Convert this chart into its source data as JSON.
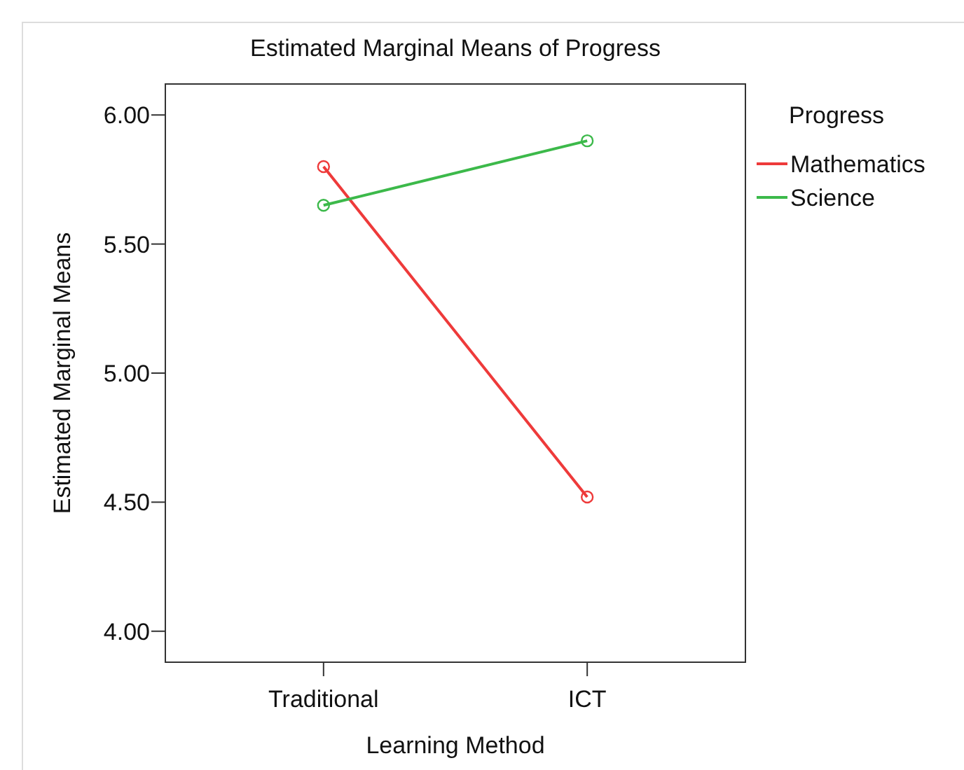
{
  "chart_data": {
    "type": "line",
    "title": "Estimated Marginal Means of Progress",
    "xlabel": "Learning Method",
    "ylabel": "Estimated Marginal Means",
    "legend_title": "Progress",
    "categories": [
      "Traditional",
      "ICT"
    ],
    "series": [
      {
        "name": "Mathematics",
        "color": "#ee3a3a",
        "values": [
          5.8,
          4.52
        ]
      },
      {
        "name": "Science",
        "color": "#3cb94a",
        "values": [
          5.65,
          5.9
        ]
      }
    ],
    "ylim": [
      3.88,
      6.12
    ],
    "yticks": [
      {
        "value": 4,
        "label": "4.00"
      },
      {
        "value": 4.5,
        "label": "4.50"
      },
      {
        "value": 5,
        "label": "5.00"
      },
      {
        "value": 5.5,
        "label": "5.50"
      },
      {
        "value": 6,
        "label": "6.00"
      }
    ],
    "grid": false,
    "legend": "top right",
    "marker": "circle",
    "line_style": "solid"
  }
}
